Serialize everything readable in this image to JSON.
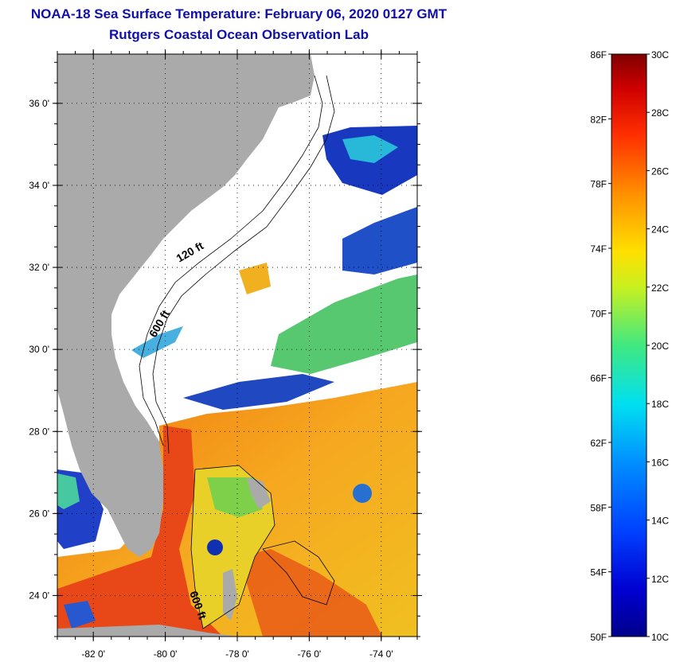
{
  "title": {
    "line1": "NOAA-18 Sea Surface Temperature:  February 06, 2020 0127 GMT",
    "line2": "Rutgers Coastal Ocean Observation Lab"
  },
  "map": {
    "lat_ticks": [
      {
        "value": 36,
        "label": "36 0'"
      },
      {
        "value": 34,
        "label": "34 0'"
      },
      {
        "value": 32,
        "label": "32 0'"
      },
      {
        "value": 30,
        "label": "30 0'"
      },
      {
        "value": 28,
        "label": "28 0'"
      },
      {
        "value": 26,
        "label": "26 0'"
      },
      {
        "value": 24,
        "label": "24 0'"
      }
    ],
    "lon_ticks": [
      {
        "value": -82,
        "label": "-82 0'"
      },
      {
        "value": -80,
        "label": "-80 0'"
      },
      {
        "value": -78,
        "label": "-78 0'"
      },
      {
        "value": -76,
        "label": "-76 0'"
      },
      {
        "value": -74,
        "label": "-74 0'"
      }
    ],
    "lat_range": [
      23,
      37.2
    ],
    "lon_range": [
      -83,
      -73
    ],
    "contour_labels": {
      "c120_north": "120 ft",
      "c600_north": "600 ft",
      "c600_south": "600 ft"
    },
    "colors": {
      "land": "#aaaaaa",
      "cloud": "#ffffff",
      "warm": "#f08a10",
      "hot": "#e83818",
      "cold": "#1030c0"
    }
  },
  "color_scale": {
    "fahrenheit": [
      "86F",
      "82F",
      "78F",
      "74F",
      "70F",
      "66F",
      "62F",
      "58F",
      "54F",
      "50F"
    ],
    "celsius": [
      "30C",
      "28C",
      "26C",
      "24C",
      "22C",
      "20C",
      "18C",
      "16C",
      "14C",
      "12C",
      "10C"
    ],
    "range_c": [
      10,
      30
    ]
  }
}
